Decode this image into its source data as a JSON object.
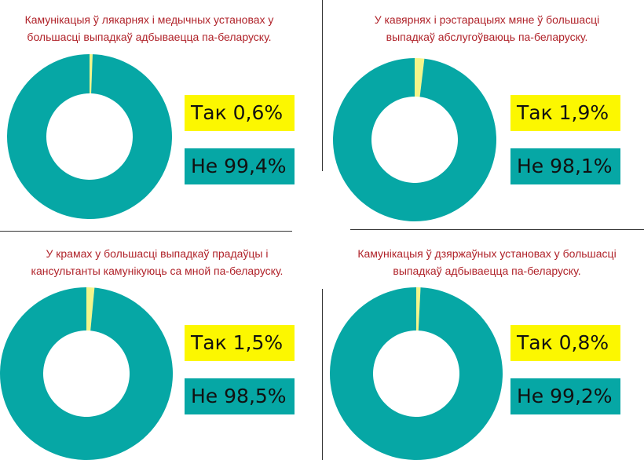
{
  "colors": {
    "yes": "#f3f58a",
    "no": "#06a7a5",
    "title": "#b0232a",
    "box_yes": "#fcf700",
    "box_no": "#06a7a5"
  },
  "chart_data": [
    {
      "type": "pie",
      "title": "Камунікацыя ў лякарнях і медычных установах у большасці выпадкаў адбываецца па-беларуску.",
      "title_lines": [
        "Камунікацыя ў лякарнях і медычных установах у",
        "большасці выпадкаў адбываецца па-беларуску."
      ],
      "categories": [
        "Так",
        "Не"
      ],
      "values": [
        0.6,
        99.4
      ],
      "labels": [
        "Так 0,6%",
        "Не 99,4%"
      ]
    },
    {
      "type": "pie",
      "title": "У кавярнях і рэстарацыях мяне ў большасці выпадкаў абслугоўваюць па-беларуску.",
      "title_lines": [
        "У кавярнях і рэстарацыях мяне ў большасці",
        "выпадкаў абслугоўваюць па-беларуску."
      ],
      "categories": [
        "Так",
        "Не"
      ],
      "values": [
        1.9,
        98.1
      ],
      "labels": [
        "Так 1,9%",
        "Не 98,1%"
      ]
    },
    {
      "type": "pie",
      "title": "У крамах у большасці выпадкаў прадаўцы і кансультанты камунікуюць са мной па-беларуску.",
      "title_lines": [
        "У крамах у большасці выпадкаў прадаўцы і",
        "кансультанты камунікуюць са мной па-беларуску."
      ],
      "categories": [
        "Так",
        "Не"
      ],
      "values": [
        1.5,
        98.5
      ],
      "labels": [
        "Так 1,5%",
        "Не 98,5%"
      ]
    },
    {
      "type": "pie",
      "title": "Камунікацыя ў дзяржаўных установах у большасці выпадкаў адбываецца па-беларуску.",
      "title_lines": [
        "Камунікацыя ў дзяржаўных установах у большасці",
        "выпадкаў адбываецца па-беларуску."
      ],
      "categories": [
        "Так",
        "Не"
      ],
      "values": [
        0.8,
        99.2
      ],
      "labels": [
        "Так 0,8%",
        "Не 99,2%"
      ]
    }
  ]
}
